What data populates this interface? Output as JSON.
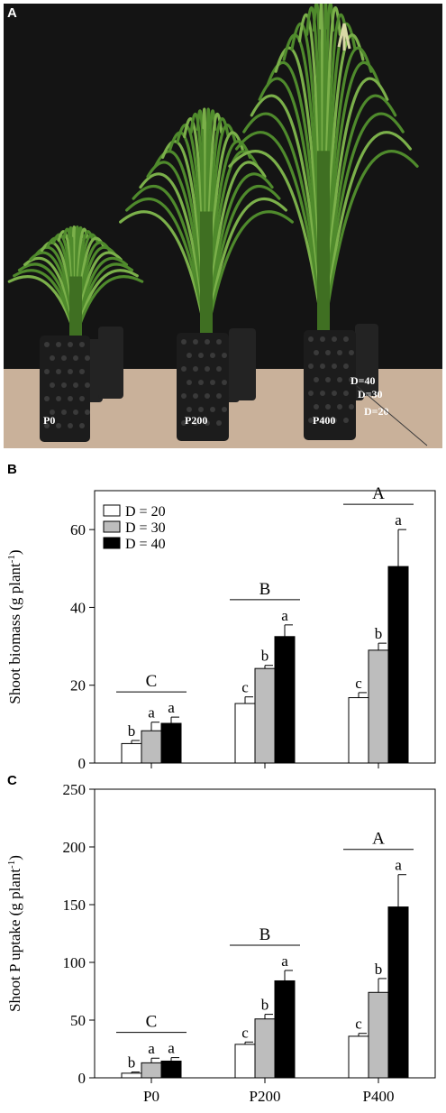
{
  "panels": {
    "a": {
      "letter": "A"
    },
    "b": {
      "letter": "B"
    },
    "c": {
      "letter": "C"
    }
  },
  "photo": {
    "pot_labels": [
      "P0",
      "P200",
      "P400"
    ],
    "depth_labels": [
      "D=40",
      "D=30",
      "D=20"
    ],
    "colors": {
      "background": "#141414",
      "floor": "#c9b19a",
      "pot": "#1c1c1c",
      "leaf": "#4f8a2c",
      "leaf_light": "#7bb04a",
      "tassel": "#d9d9a6"
    }
  },
  "chart_data": [
    {
      "type": "bar",
      "panel": "B",
      "categories": [
        "P0",
        "P200",
        "P400"
      ],
      "ylabel": "Shoot biomass (g plant",
      "ylabel_sup": "-1",
      "ylabel_close": ")",
      "ylim": [
        0,
        70
      ],
      "yticks": [
        0,
        20,
        40,
        60
      ],
      "legend_position": "top-left",
      "series": [
        {
          "name": "D = 20",
          "color": "#ffffff",
          "values": [
            5,
            15.3,
            16.8
          ],
          "errors": [
            0.8,
            1.7,
            1.3
          ],
          "letters": [
            "b",
            "c",
            "c"
          ]
        },
        {
          "name": "D = 30",
          "color": "#bdbdbd",
          "values": [
            8.3,
            24.3,
            29
          ],
          "errors": [
            2.2,
            0.8,
            1.8
          ],
          "letters": [
            "a",
            "b",
            "b"
          ]
        },
        {
          "name": "D = 40",
          "color": "#000000",
          "values": [
            10.2,
            32.5,
            50.5
          ],
          "errors": [
            1.6,
            3,
            9.5
          ],
          "letters": [
            "a",
            "a",
            "a"
          ]
        }
      ],
      "group_letters": [
        "C",
        "B",
        "A"
      ]
    },
    {
      "type": "bar",
      "panel": "C",
      "categories": [
        "P0",
        "P200",
        "P400"
      ],
      "ylabel": "Shoot P uptake (g plant",
      "ylabel_sup": "-1",
      "ylabel_close": ")",
      "ylim": [
        0,
        250
      ],
      "yticks": [
        0,
        50,
        100,
        150,
        200,
        250
      ],
      "series": [
        {
          "name": "D = 20",
          "color": "#ffffff",
          "values": [
            4,
            29,
            36
          ],
          "errors": [
            1,
            2,
            2.5
          ],
          "letters": [
            "b",
            "c",
            "c"
          ]
        },
        {
          "name": "D = 30",
          "color": "#bdbdbd",
          "values": [
            13,
            51,
            74
          ],
          "errors": [
            4,
            4,
            12
          ],
          "letters": [
            "a",
            "b",
            "b"
          ]
        },
        {
          "name": "D = 40",
          "color": "#000000",
          "values": [
            14.5,
            84,
            148
          ],
          "errors": [
            3,
            9,
            28
          ],
          "letters": [
            "a",
            "a",
            "a"
          ]
        }
      ],
      "group_letters": [
        "C",
        "B",
        "A"
      ]
    }
  ]
}
